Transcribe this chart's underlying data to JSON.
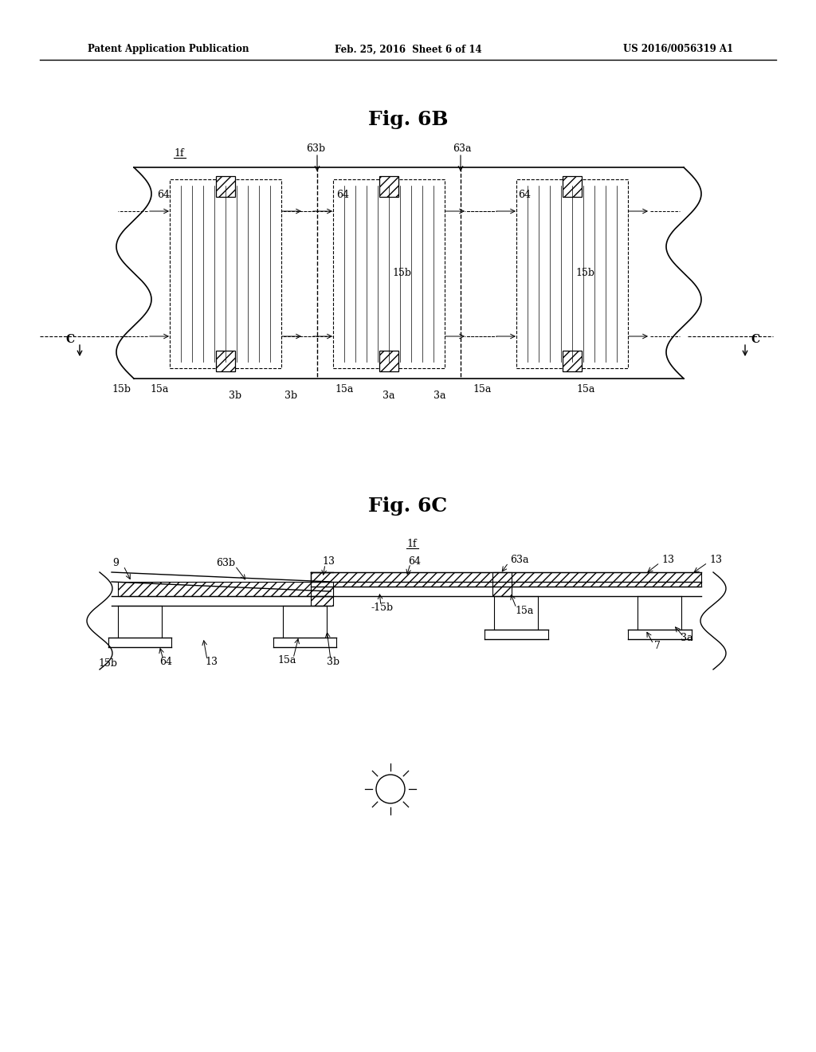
{
  "background_color": "#ffffff",
  "header_left": "Patent Application Publication",
  "header_center": "Feb. 25, 2016  Sheet 6 of 14",
  "header_right": "US 2016/0056319 A1",
  "fig6b_title": "Fig. 6B",
  "fig6c_title": "Fig. 6C",
  "label_1f": "1f"
}
